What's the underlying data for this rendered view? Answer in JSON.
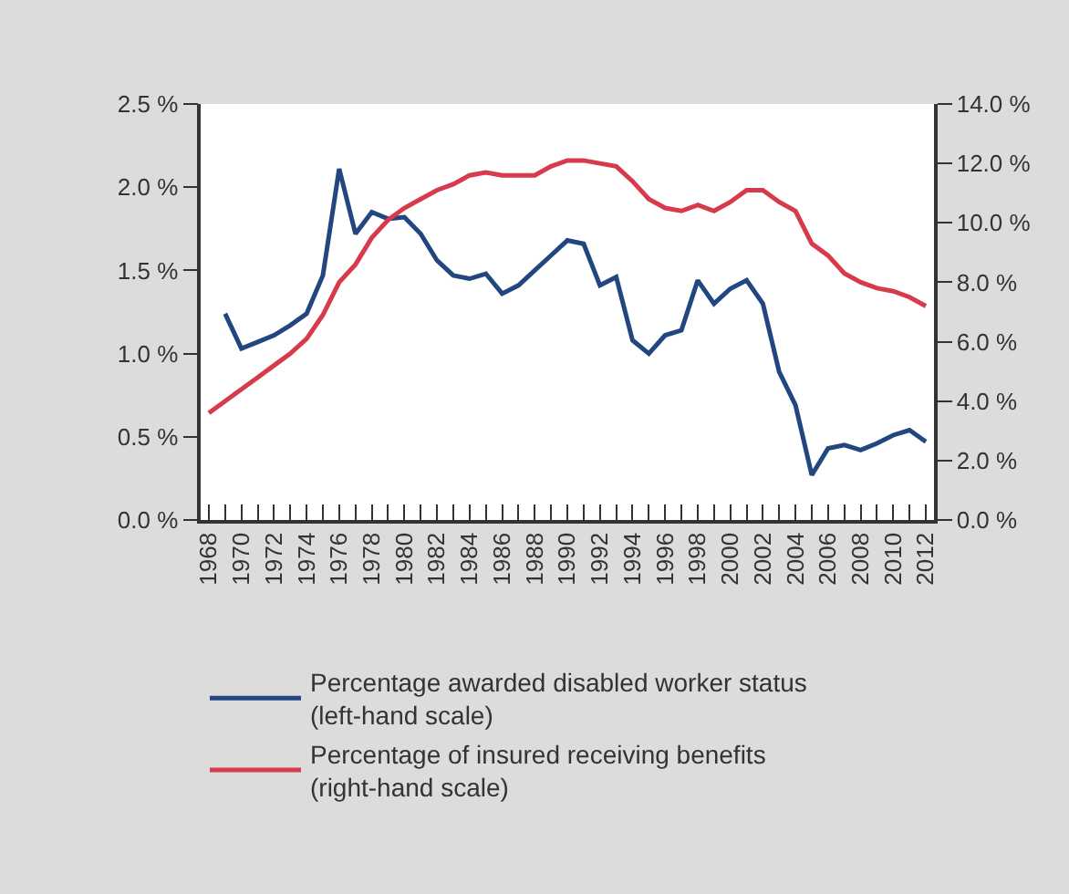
{
  "chart_data": {
    "type": "line",
    "x": [
      1968,
      1969,
      1970,
      1971,
      1972,
      1973,
      1974,
      1975,
      1976,
      1977,
      1978,
      1979,
      1980,
      1981,
      1982,
      1983,
      1984,
      1985,
      1986,
      1987,
      1988,
      1989,
      1990,
      1991,
      1992,
      1993,
      1994,
      1995,
      1996,
      1997,
      1998,
      1999,
      2000,
      2001,
      2002,
      2003,
      2004,
      2005,
      2006,
      2007,
      2008,
      2009,
      2010,
      2011,
      2012
    ],
    "series": [
      {
        "name": "Percentage awarded disabled worker status\n(left-hand scale)",
        "color": "#22467f",
        "values": [
          null,
          1.24,
          1.03,
          1.07,
          1.11,
          1.17,
          1.24,
          1.47,
          2.11,
          1.72,
          1.85,
          1.81,
          1.82,
          1.72,
          1.56,
          1.47,
          1.45,
          1.48,
          1.36,
          1.41,
          1.5,
          1.59,
          1.68,
          1.66,
          1.41,
          1.46,
          1.08,
          1.0,
          1.11,
          1.14,
          1.44,
          1.3,
          1.39,
          1.44,
          1.3,
          0.89,
          0.69,
          0.27,
          0.43,
          0.45,
          0.42,
          0.46,
          0.51,
          0.54,
          0.47
        ]
      },
      {
        "name": "Percentage of insured receiving benefits\n(right-hand scale)",
        "color": "#d63a4b",
        "axis": "y2",
        "values": [
          3.6,
          4.0,
          4.4,
          4.8,
          5.2,
          5.6,
          6.1,
          6.9,
          8.0,
          8.6,
          9.5,
          10.1,
          10.5,
          10.8,
          11.1,
          11.3,
          11.6,
          11.7,
          11.6,
          11.6,
          11.6,
          11.9,
          12.1,
          12.1,
          12.0,
          11.9,
          11.4,
          10.8,
          10.5,
          10.4,
          10.6,
          10.4,
          10.7,
          11.1,
          11.1,
          10.7,
          10.4,
          9.3,
          8.9,
          8.3,
          8.0,
          7.8,
          7.7,
          7.5,
          7.2
        ]
      }
    ],
    "xlim": [
      1967.5,
      2012.5
    ],
    "xticks": [
      {
        "value": 1968,
        "label": "1968"
      },
      {
        "value": 1969,
        "label": null
      },
      {
        "value": 1970,
        "label": "1970"
      },
      {
        "value": 1971,
        "label": null
      },
      {
        "value": 1972,
        "label": "1972"
      },
      {
        "value": 1973,
        "label": null
      },
      {
        "value": 1974,
        "label": "1974"
      },
      {
        "value": 1975,
        "label": null
      },
      {
        "value": 1976,
        "label": "1976"
      },
      {
        "value": 1977,
        "label": null
      },
      {
        "value": 1978,
        "label": "1978"
      },
      {
        "value": 1979,
        "label": null
      },
      {
        "value": 1980,
        "label": "1980"
      },
      {
        "value": 1981,
        "label": null
      },
      {
        "value": 1982,
        "label": "1982"
      },
      {
        "value": 1983,
        "label": null
      },
      {
        "value": 1984,
        "label": "1984"
      },
      {
        "value": 1985,
        "label": null
      },
      {
        "value": 1986,
        "label": "1986"
      },
      {
        "value": 1987,
        "label": null
      },
      {
        "value": 1988,
        "label": "1988"
      },
      {
        "value": 1989,
        "label": null
      },
      {
        "value": 1990,
        "label": "1990"
      },
      {
        "value": 1991,
        "label": null
      },
      {
        "value": 1992,
        "label": "1992"
      },
      {
        "value": 1993,
        "label": null
      },
      {
        "value": 1994,
        "label": "1994"
      },
      {
        "value": 1995,
        "label": null
      },
      {
        "value": 1996,
        "label": "1996"
      },
      {
        "value": 1997,
        "label": null
      },
      {
        "value": 1998,
        "label": "1998"
      },
      {
        "value": 1999,
        "label": null
      },
      {
        "value": 2000,
        "label": "2000"
      },
      {
        "value": 2001,
        "label": null
      },
      {
        "value": 2002,
        "label": "2002"
      },
      {
        "value": 2003,
        "label": null
      },
      {
        "value": 2004,
        "label": "2004"
      },
      {
        "value": 2005,
        "label": null
      },
      {
        "value": 2006,
        "label": "2006"
      },
      {
        "value": 2007,
        "label": null
      },
      {
        "value": 2008,
        "label": "2008"
      },
      {
        "value": 2009,
        "label": null
      },
      {
        "value": 2010,
        "label": "2010"
      },
      {
        "value": 2011,
        "label": null
      },
      {
        "value": 2012,
        "label": "2012"
      }
    ],
    "ylim": [
      0,
      2.5
    ],
    "yticks": [
      {
        "value": 0,
        "label": "0.0 %"
      },
      {
        "value": 0.5,
        "label": "0.5 %"
      },
      {
        "value": 1,
        "label": "1.0 %"
      },
      {
        "value": 1.5,
        "label": "1.5 %"
      },
      {
        "value": 2,
        "label": "2.0 %"
      },
      {
        "value": 2.5,
        "label": "2.5 %"
      }
    ],
    "y2lim": [
      0,
      14
    ],
    "y2ticks": [
      {
        "value": 0,
        "label": "0.0 %"
      },
      {
        "value": 2,
        "label": "2.0 %"
      },
      {
        "value": 4,
        "label": "4.0 %"
      },
      {
        "value": 6,
        "label": "6.0 %"
      },
      {
        "value": 8,
        "label": "8.0 %"
      },
      {
        "value": 10,
        "label": "10.0 %"
      },
      {
        "value": 12,
        "label": "12.0 %"
      },
      {
        "value": 14,
        "label": "14.0 %"
      }
    ],
    "legend": "bottom",
    "marker": "none",
    "line_style": "solid"
  }
}
